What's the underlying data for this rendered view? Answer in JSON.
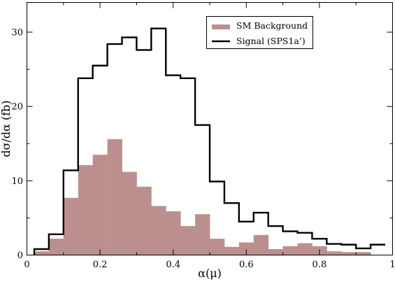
{
  "chart_data": {
    "type": "histogram",
    "xlabel": "α(μ)",
    "ylabel": "dσ/dα (fb)",
    "xlim": [
      0,
      1
    ],
    "ylim": [
      0,
      34
    ],
    "xticks": [
      0,
      0.2,
      0.4,
      0.6,
      0.8,
      1
    ],
    "xtick_labels": [
      "0",
      "0.2",
      "0.4",
      "0.6",
      "0.8",
      "1"
    ],
    "yticks": [
      0,
      10,
      20,
      30
    ],
    "ytick_labels": [
      "0",
      "10",
      "20",
      "30"
    ],
    "grid": false,
    "legend_position": "top-right",
    "bin_edges": [
      0.02,
      0.06,
      0.1,
      0.14,
      0.18,
      0.22,
      0.26,
      0.3,
      0.34,
      0.38,
      0.42,
      0.46,
      0.5,
      0.54,
      0.58,
      0.62,
      0.66,
      0.7,
      0.74,
      0.78,
      0.82,
      0.86,
      0.9,
      0.94,
      0.98
    ],
    "series": [
      {
        "name": "SM Background",
        "style": "filled",
        "color": "#bc8f8f",
        "values": [
          0.5,
          2.2,
          7.7,
          12.1,
          13.5,
          15.6,
          11.2,
          9.2,
          6.6,
          5.9,
          3.9,
          5.5,
          2.2,
          1.1,
          1.7,
          2.7,
          0.8,
          1.2,
          1.6,
          1.2,
          0.5,
          0.4,
          0.4,
          0.0
        ]
      },
      {
        "name": "Signal (SPS1a’)",
        "style": "step",
        "color": "#000000",
        "values": [
          0.8,
          2.8,
          11.4,
          23.8,
          25.5,
          28.4,
          29.3,
          27.6,
          30.5,
          24.2,
          23.8,
          17.5,
          9.9,
          7.0,
          4.5,
          5.7,
          3.9,
          3.2,
          3.0,
          2.2,
          1.5,
          1.4,
          0.9,
          1.4
        ]
      }
    ]
  }
}
